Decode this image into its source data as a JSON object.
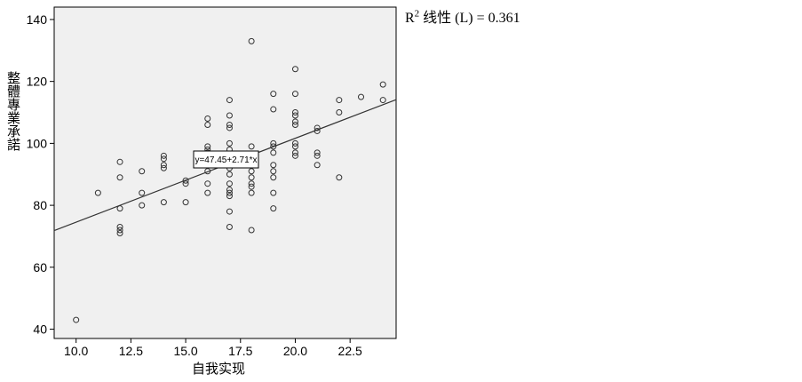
{
  "r2_label": {
    "r_letter": "R",
    "sup": "2",
    "text": " 线性  (L) = 0.361"
  },
  "chart_data": {
    "type": "scatter",
    "xlabel": "自我实现",
    "ylabel": "整體專業承諾",
    "xlim": [
      9,
      24.6
    ],
    "ylim": [
      37,
      144
    ],
    "x_ticks": [
      10.0,
      12.5,
      15.0,
      17.5,
      20.0,
      22.5
    ],
    "x_tick_labels": [
      "10.0",
      "12.5",
      "15.0",
      "17.5",
      "20.0",
      "22.5"
    ],
    "y_ticks": [
      40,
      60,
      80,
      100,
      120,
      140
    ],
    "y_tick_labels": [
      "40",
      "60",
      "80",
      "100",
      "120",
      "140"
    ],
    "grid": false,
    "plot_background": "#f0f0f0",
    "marker_color": "#333333",
    "line_color": "#333333",
    "fit_line": {
      "intercept": 47.45,
      "slope": 2.71,
      "label": "y=47.45+2.71*x"
    },
    "r_squared": 0.361,
    "points": [
      [
        10,
        43
      ],
      [
        11,
        84
      ],
      [
        12,
        94
      ],
      [
        12,
        89
      ],
      [
        12,
        79
      ],
      [
        12,
        73
      ],
      [
        12,
        72
      ],
      [
        12,
        71
      ],
      [
        13,
        91
      ],
      [
        13,
        84
      ],
      [
        13,
        80
      ],
      [
        14,
        96
      ],
      [
        14,
        95
      ],
      [
        14,
        93
      ],
      [
        14,
        92
      ],
      [
        14,
        81
      ],
      [
        15,
        88
      ],
      [
        15,
        87
      ],
      [
        15,
        81
      ],
      [
        16,
        108
      ],
      [
        16,
        106
      ],
      [
        16,
        99
      ],
      [
        16,
        98
      ],
      [
        16,
        97
      ],
      [
        16,
        91
      ],
      [
        16,
        87
      ],
      [
        16,
        84
      ],
      [
        17,
        114
      ],
      [
        17,
        109
      ],
      [
        17,
        106
      ],
      [
        17,
        105
      ],
      [
        17,
        100
      ],
      [
        17,
        98
      ],
      [
        17,
        96
      ],
      [
        17,
        92
      ],
      [
        17,
        90
      ],
      [
        17,
        87
      ],
      [
        17,
        85
      ],
      [
        17,
        84
      ],
      [
        17,
        83
      ],
      [
        17,
        78
      ],
      [
        17,
        73
      ],
      [
        18,
        133
      ],
      [
        18,
        99
      ],
      [
        18,
        94
      ],
      [
        18,
        91
      ],
      [
        18,
        89
      ],
      [
        18,
        87
      ],
      [
        18,
        86
      ],
      [
        18,
        84
      ],
      [
        18,
        72
      ],
      [
        19,
        116
      ],
      [
        19,
        111
      ],
      [
        19,
        100
      ],
      [
        19,
        99
      ],
      [
        19,
        97
      ],
      [
        19,
        93
      ],
      [
        19,
        91
      ],
      [
        19,
        89
      ],
      [
        19,
        84
      ],
      [
        19,
        79
      ],
      [
        20,
        124
      ],
      [
        20,
        116
      ],
      [
        20,
        110
      ],
      [
        20,
        109
      ],
      [
        20,
        107
      ],
      [
        20,
        106
      ],
      [
        20,
        100
      ],
      [
        20,
        99
      ],
      [
        20,
        97
      ],
      [
        20,
        96
      ],
      [
        21,
        105
      ],
      [
        21,
        104
      ],
      [
        21,
        97
      ],
      [
        21,
        96
      ],
      [
        21,
        93
      ],
      [
        22,
        114
      ],
      [
        22,
        110
      ],
      [
        22,
        89
      ],
      [
        23,
        115
      ],
      [
        24,
        119
      ],
      [
        24,
        114
      ]
    ]
  }
}
